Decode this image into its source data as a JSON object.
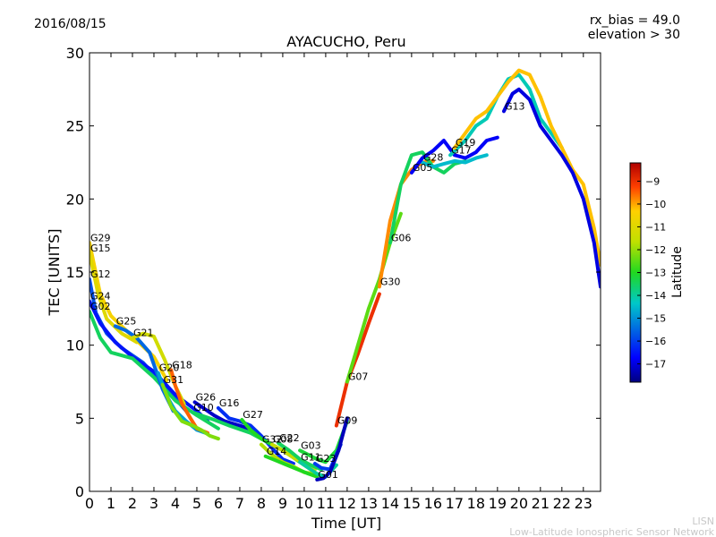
{
  "header": {
    "date": "2016/08/15",
    "bias": "rx_bias = 49.0",
    "elevation": "elevation > 30"
  },
  "credit": {
    "line1": "LISN",
    "line2": "Low-Latitude Ionospheric Sensor Network"
  },
  "colorbar": {
    "label": "Latitude",
    "min": -17.8,
    "max": -8.2,
    "ticks": [
      "-9",
      "-10",
      "-11",
      "-12",
      "-13",
      "-14",
      "-15",
      "-16",
      "-17"
    ]
  },
  "chart_data": {
    "type": "line",
    "title": "AYACUCHO, Peru",
    "xlabel": "Time [UT]",
    "ylabel": "TEC [UNITS]",
    "xlim": [
      0,
      23.8
    ],
    "ylim": [
      0,
      30
    ],
    "xticks": [
      "0",
      "1",
      "2",
      "3",
      "4",
      "5",
      "6",
      "7",
      "8",
      "9",
      "10",
      "11",
      "12",
      "13",
      "14",
      "15",
      "16",
      "17",
      "18",
      "19",
      "20",
      "21",
      "22",
      "23"
    ],
    "yticks": [
      "0",
      "5",
      "10",
      "15",
      "20",
      "25",
      "30"
    ],
    "grid": false,
    "colorscale": "jet",
    "series": [
      {
        "name": "G29",
        "lat": -10.5,
        "x": [
          0,
          0.5,
          1,
          2,
          3,
          3.6
        ],
        "y": [
          17,
          13.5,
          12,
          10.6,
          9.2,
          7.6
        ]
      },
      {
        "name": "G15",
        "lat": -11.0,
        "x": [
          0,
          0.4,
          0.8,
          1.5,
          2.2
        ],
        "y": [
          16.3,
          13.5,
          11.8,
          10.8,
          10.2
        ]
      },
      {
        "name": "G12",
        "lat": -15.8,
        "x": [
          0,
          0.3,
          0.8,
          1.5,
          2.5,
          3.5,
          4.5
        ],
        "y": [
          14.5,
          12.2,
          10.8,
          9.8,
          8.8,
          7.2,
          5.5
        ]
      },
      {
        "name": "G24",
        "lat": -16.5,
        "x": [
          0,
          0.5,
          1.2,
          2,
          3,
          4,
          5,
          5.5
        ],
        "y": [
          13,
          11.5,
          10.2,
          9.2,
          8.2,
          6.6,
          5.5,
          4.8
        ]
      },
      {
        "name": "G02",
        "lat": -13.5,
        "x": [
          0,
          0.5,
          1,
          2,
          3,
          4,
          5,
          6
        ],
        "y": [
          12.3,
          10.5,
          9.5,
          9.1,
          7.8,
          6.2,
          5.2,
          4.3
        ]
      },
      {
        "name": "G25",
        "lat": -15.5,
        "x": [
          1.2,
          1.7,
          2.2,
          2.8,
          3.4,
          3.9
        ],
        "y": [
          11.3,
          11,
          10.5,
          9.5,
          7,
          5.5
        ]
      },
      {
        "name": "G21",
        "lat": -11.3,
        "x": [
          2,
          2.5,
          3,
          3.5,
          4,
          4.4
        ],
        "y": [
          10.5,
          10.8,
          10.6,
          9,
          7.2,
          6
        ]
      },
      {
        "name": "G20",
        "lat": -14.8,
        "x": [
          3.2,
          3.6,
          4,
          4.5,
          5,
          5.4
        ],
        "y": [
          8.1,
          6.5,
          5.5,
          4.8,
          4.2,
          4
        ]
      },
      {
        "name": "G18",
        "lat": -9.5,
        "x": [
          3.8,
          4,
          4.3,
          4.7,
          5,
          5.5
        ],
        "y": [
          8.3,
          7.2,
          6,
          5,
          4.3,
          4
        ]
      },
      {
        "name": "G31",
        "lat": -12.2,
        "x": [
          3.4,
          3.8,
          4.3,
          4.8,
          5.2,
          5.6,
          6
        ],
        "y": [
          7.3,
          5.8,
          4.8,
          4.5,
          4.2,
          3.8,
          3.6
        ]
      },
      {
        "name": "G26",
        "lat": -17.2,
        "x": [
          4.9,
          5.3,
          5.8,
          6.3,
          7,
          7.6
        ],
        "y": [
          6.1,
          5.7,
          5.2,
          4.8,
          4.5,
          4.2
        ]
      },
      {
        "name": "G10",
        "lat": -13.5,
        "x": [
          4.8,
          5.2,
          5.8,
          6.5,
          7.5,
          8.5
        ],
        "y": [
          5.4,
          5.2,
          4.9,
          4.5,
          4,
          3.2
        ]
      },
      {
        "name": "G16",
        "lat": -16.2,
        "x": [
          6,
          6.5,
          7,
          7.5,
          8,
          8.6,
          9,
          9.5
        ],
        "y": [
          5.7,
          5,
          4.8,
          4.5,
          3.8,
          2.8,
          2.2,
          1.9
        ]
      },
      {
        "name": "G27",
        "lat": -13.0,
        "x": [
          7.1,
          7.5,
          8,
          8.5,
          9,
          9.5,
          10,
          10.4
        ],
        "y": [
          4.9,
          4.2,
          3.6,
          3.2,
          2.8,
          2.3,
          1.8,
          1.4
        ]
      },
      {
        "name": "G32",
        "lat": -11.8,
        "x": [
          8,
          8.5,
          9,
          9.5,
          10,
          10.5
        ],
        "y": [
          3.2,
          2.5,
          2,
          1.7,
          1.3,
          1.2
        ]
      },
      {
        "name": "G14",
        "lat": -13.0,
        "x": [
          8.2,
          8.7,
          9.2,
          9.7,
          10.2,
          10.6
        ],
        "y": [
          2.4,
          2.1,
          1.8,
          1.5,
          1.2,
          1
        ]
      },
      {
        "name": "G08",
        "lat": -11.5,
        "x": [
          8.5,
          9,
          9.5,
          10,
          10.5
        ],
        "y": [
          3.2,
          2.8,
          2.3,
          1.9,
          1.5
        ]
      },
      {
        "name": "G22",
        "lat": -13.5,
        "x": [
          8.8,
          9.3,
          9.8,
          10.3,
          10.8
        ],
        "y": [
          3.3,
          2.8,
          2.2,
          1.8,
          1.5
        ]
      },
      {
        "name": "G03",
        "lat": -13.2,
        "x": [
          9.8,
          10.2,
          10.6,
          11,
          11.5,
          12
        ],
        "y": [
          2.8,
          2.5,
          2.2,
          2,
          2.8,
          4.8
        ]
      },
      {
        "name": "G11",
        "lat": -14.0,
        "x": [
          9.8,
          10.2,
          10.6,
          11,
          11.5
        ],
        "y": [
          2,
          1.6,
          1.2,
          1,
          1.8
        ]
      },
      {
        "name": "G23",
        "lat": -16.0,
        "x": [
          10.5,
          10.8,
          11.2,
          11.7
        ],
        "y": [
          1.9,
          1.6,
          1.5,
          3.2
        ]
      },
      {
        "name": "G01",
        "lat": -17.3,
        "x": [
          10.6,
          10.9,
          11.2,
          11.6,
          12
        ],
        "y": [
          0.8,
          0.9,
          1.3,
          2.8,
          5
        ]
      },
      {
        "name": "G09",
        "lat": -9.0,
        "x": [
          11.5,
          12,
          12.5,
          13,
          13.5
        ],
        "y": [
          4.5,
          7.5,
          9.4,
          11.5,
          13.5
        ]
      },
      {
        "name": "G07",
        "lat": -12.5,
        "x": [
          12,
          12.5,
          13,
          13.5,
          14,
          14.5
        ],
        "y": [
          7.5,
          10,
          12.5,
          14.5,
          17,
          19
        ]
      },
      {
        "name": "G30",
        "lat": -9.8,
        "x": [
          13.5,
          14,
          14.5,
          15,
          15.5,
          16
        ],
        "y": [
          14,
          18.5,
          21,
          22,
          22.5,
          22.6
        ]
      },
      {
        "name": "G06",
        "lat": -13.5,
        "x": [
          14,
          14.5,
          15,
          15.5,
          16,
          16.5,
          17,
          17.5
        ],
        "y": [
          17,
          21,
          23,
          23.2,
          22.2,
          21.8,
          22.4,
          22.6
        ]
      },
      {
        "name": "G28",
        "lat": -14.5,
        "x": [
          15.5,
          16,
          16.5,
          17,
          17.5,
          18,
          18.5
        ],
        "y": [
          22.5,
          22.2,
          22.4,
          22.6,
          22.5,
          22.8,
          23
        ]
      },
      {
        "name": "G05",
        "lat": -16.8,
        "x": [
          15,
          15.5,
          16,
          16.5,
          17,
          17.5,
          18,
          18.5,
          19
        ],
        "y": [
          21.8,
          22.8,
          23.3,
          24,
          23,
          22.8,
          23.2,
          24,
          24.2
        ]
      },
      {
        "name": "G17",
        "lat": -14.2,
        "x": [
          16.8,
          17.5,
          18,
          18.5,
          19,
          19.5,
          20,
          20.5,
          21,
          21.5,
          22
        ],
        "y": [
          23,
          24,
          25,
          25.5,
          27,
          28.2,
          28.5,
          27.5,
          25.5,
          24.5,
          23.5
        ]
      },
      {
        "name": "G19",
        "lat": -10.2,
        "x": [
          17,
          17.5,
          18,
          18.5,
          19,
          19.5,
          20,
          20.5,
          21,
          21.5,
          22,
          22.5,
          23,
          23.5,
          23.8
        ],
        "y": [
          23.5,
          24.5,
          25.5,
          26,
          27,
          28,
          28.8,
          28.5,
          27,
          25,
          23.5,
          22,
          21,
          18,
          15.5
        ]
      },
      {
        "name": "G13",
        "lat": -17.0,
        "x": [
          19.3,
          19.7,
          20,
          20.5,
          21,
          21.5,
          22,
          22.5,
          23,
          23.5,
          23.8
        ],
        "y": [
          26,
          27.2,
          27.5,
          26.8,
          25,
          24,
          23,
          21.8,
          20,
          17,
          14
        ]
      }
    ]
  }
}
